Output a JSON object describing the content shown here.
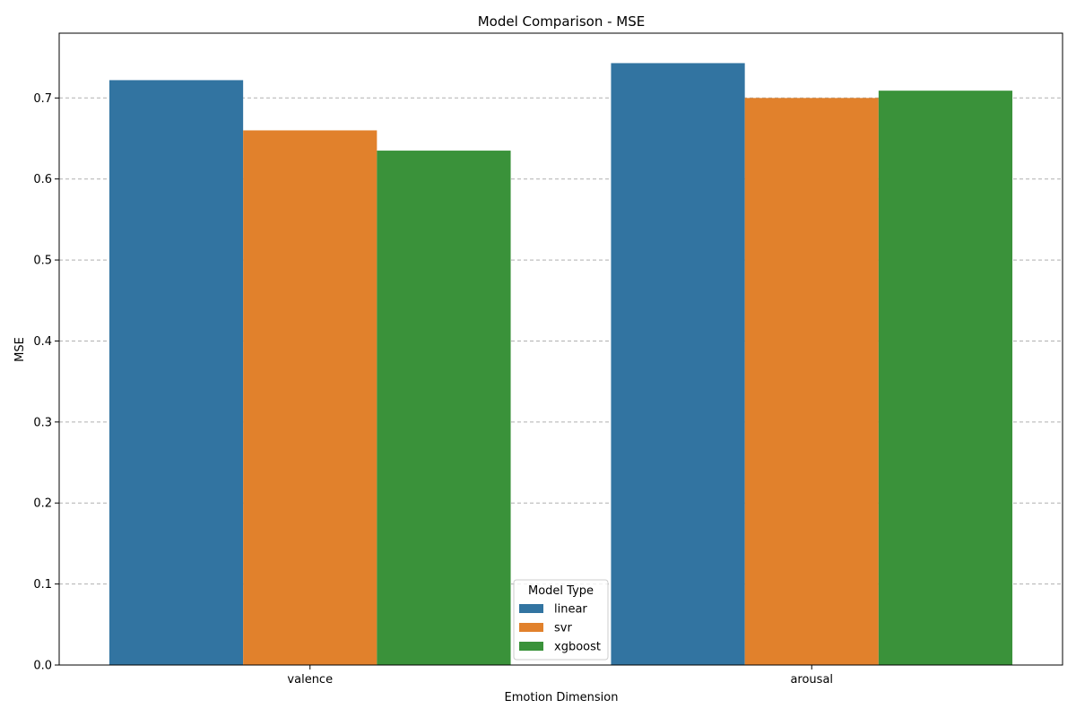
{
  "chart_data": {
    "type": "bar",
    "title": "Model Comparison - MSE",
    "xlabel": "Emotion Dimension",
    "ylabel": "MSE",
    "categories": [
      "valence",
      "arousal"
    ],
    "series": [
      {
        "name": "linear",
        "values": [
          0.722,
          0.743
        ],
        "color": "#3274a1"
      },
      {
        "name": "svr",
        "values": [
          0.66,
          0.7
        ],
        "color": "#e1812c"
      },
      {
        "name": "xgboost",
        "values": [
          0.635,
          0.709
        ],
        "color": "#3a923a"
      }
    ],
    "ylim": [
      0,
      0.78
    ],
    "yticks": [
      "0.0",
      "0.1",
      "0.2",
      "0.3",
      "0.4",
      "0.5",
      "0.6",
      "0.7"
    ],
    "grid": "y-dashed",
    "legend": {
      "title": "Model Type",
      "position": "bottom-center"
    }
  }
}
